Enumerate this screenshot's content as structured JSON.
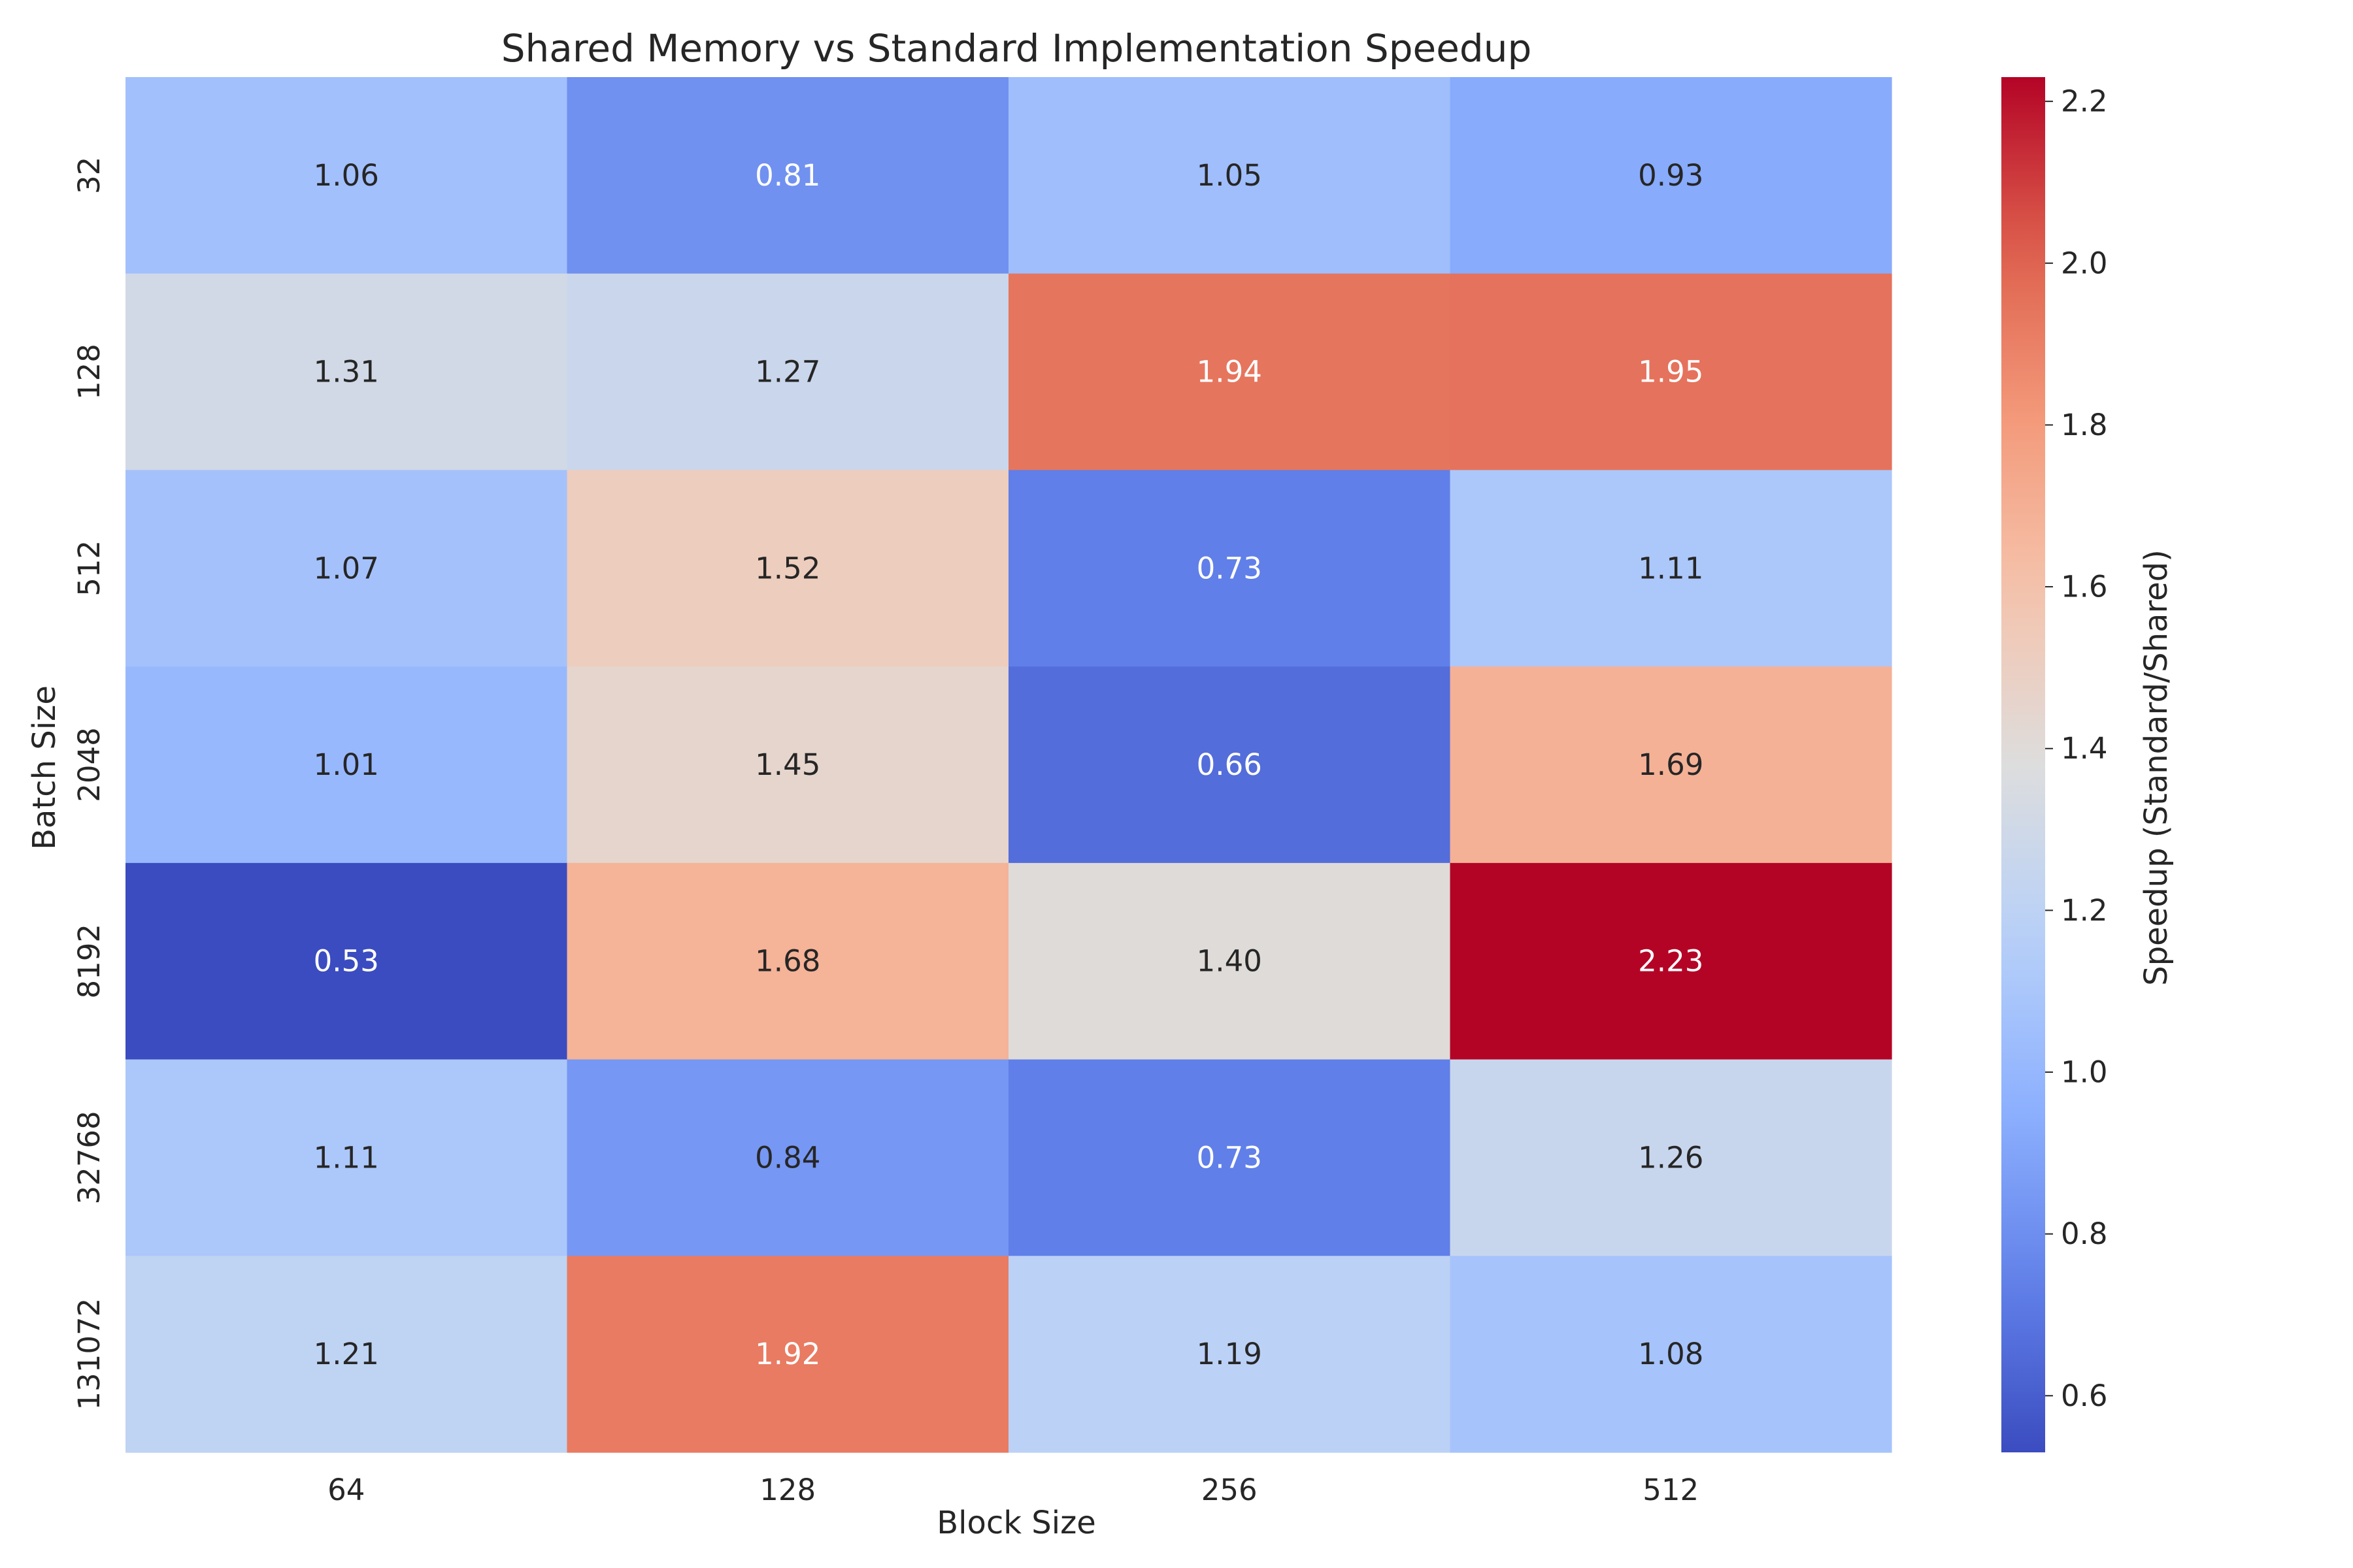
{
  "chart_data": {
    "type": "heatmap",
    "title": "Shared Memory vs Standard Implementation Speedup",
    "xlabel": "Block Size",
    "ylabel": "Batch Size",
    "x_categories": [
      "64",
      "128",
      "256",
      "512"
    ],
    "y_categories": [
      "32",
      "128",
      "512",
      "2048",
      "8192",
      "32768",
      "131072"
    ],
    "values": [
      [
        1.06,
        0.81,
        1.05,
        0.93
      ],
      [
        1.31,
        1.27,
        1.94,
        1.95
      ],
      [
        1.07,
        1.52,
        0.73,
        1.11
      ],
      [
        1.01,
        1.45,
        0.66,
        1.69
      ],
      [
        0.53,
        1.68,
        1.4,
        2.23
      ],
      [
        1.11,
        0.84,
        0.73,
        1.26
      ],
      [
        1.21,
        1.92,
        1.19,
        1.08
      ]
    ],
    "value_format": "0.00",
    "colormap": "coolwarm",
    "colors": {
      "low": "#3b4cc0",
      "mid": "#dddddd",
      "high": "#b40426"
    },
    "colorbar": {
      "label": "Speedup (Standard/Shared)",
      "range": [
        0.53,
        2.23
      ],
      "ticks": [
        "0.6",
        "0.8",
        "1.0",
        "1.2",
        "1.4",
        "1.6",
        "1.8",
        "2.0",
        "2.2"
      ]
    }
  }
}
